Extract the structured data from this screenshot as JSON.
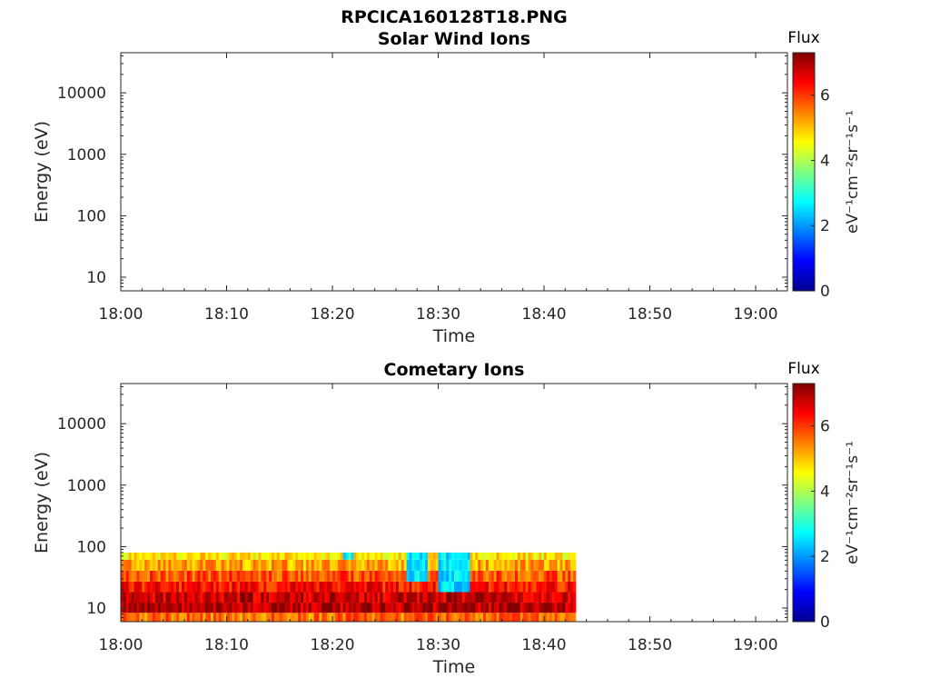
{
  "figure": {
    "title": "RPCICA160128T18.PNG"
  },
  "chart_data": [
    {
      "type": "heatmap",
      "title": "Solar Wind Ions",
      "xlabel": "Time",
      "ylabel": "Energy (eV)",
      "x_ticks": [
        "18:00",
        "18:10",
        "18:20",
        "18:30",
        "18:40",
        "18:50",
        "19:00"
      ],
      "x_range": [
        "18:00",
        "19:03"
      ],
      "y_ticks": [
        10,
        100,
        1000,
        10000
      ],
      "y_scale": "log",
      "y_range": [
        6,
        45000
      ],
      "colorbar": {
        "title": "Flux",
        "label": "eV⁻¹cm⁻²sr⁻¹s⁻¹",
        "ticks": [
          0,
          2,
          4,
          6
        ],
        "range": [
          0,
          7.3
        ],
        "colormap": "jet"
      },
      "data": [],
      "grid": false
    },
    {
      "type": "heatmap",
      "title": "Cometary Ions",
      "xlabel": "Time",
      "ylabel": "Energy (eV)",
      "x_ticks": [
        "18:00",
        "18:10",
        "18:20",
        "18:30",
        "18:40",
        "18:50",
        "19:00"
      ],
      "x_range": [
        "18:00",
        "19:03"
      ],
      "y_ticks": [
        10,
        100,
        1000,
        10000
      ],
      "y_scale": "log",
      "y_range": [
        6,
        45000
      ],
      "colorbar": {
        "title": "Flux",
        "label": "eV⁻¹cm⁻²sr⁻¹s⁻¹",
        "ticks": [
          0,
          2,
          4,
          6
        ],
        "range": [
          0,
          7.3
        ],
        "colormap": "jet"
      },
      "data": {
        "time_range": [
          "18:00",
          "18:43"
        ],
        "energy_range_eV": [
          6,
          80
        ],
        "flux_by_energy_band": [
          {
            "energy_eV": 7,
            "flux": 5.6
          },
          {
            "energy_eV": 10,
            "flux": 6.9
          },
          {
            "energy_eV": 15,
            "flux": 6.8
          },
          {
            "energy_eV": 22,
            "flux": 6.3
          },
          {
            "energy_eV": 33,
            "flux": 5.8
          },
          {
            "energy_eV": 50,
            "flux": 5.2
          },
          {
            "energy_eV": 75,
            "flux": 4.7
          }
        ],
        "low_flux_intervals": [
          {
            "time": [
              "18:21",
              "18:22"
            ],
            "energy_eV": [
              55,
              80
            ],
            "flux": 2.8
          },
          {
            "time": [
              "18:27",
              "18:29"
            ],
            "energy_eV": [
              30,
              80
            ],
            "flux": 2.6
          },
          {
            "time": [
              "18:30",
              "18:33"
            ],
            "energy_eV": [
              22,
              80
            ],
            "flux": 2.5
          }
        ]
      },
      "grid": false
    }
  ]
}
